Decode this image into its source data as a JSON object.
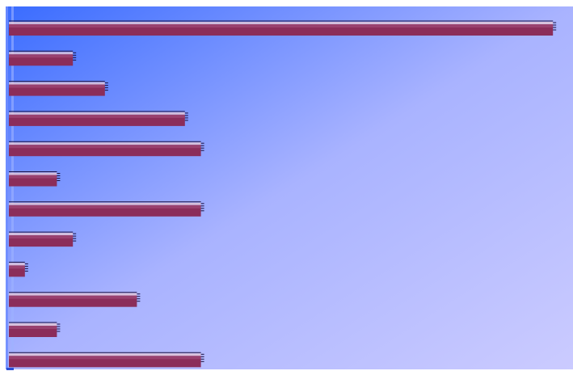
{
  "chart_data": {
    "type": "bar",
    "orientation": "horizontal",
    "categories": [
      "",
      "",
      "",
      "",
      "",
      "",
      "",
      "",
      "",
      "",
      "",
      ""
    ],
    "values": [
      34,
      4,
      6,
      11,
      12,
      3,
      12,
      4,
      1,
      8,
      3,
      12
    ],
    "xlim": [
      0,
      35
    ],
    "title": "",
    "xlabel": "",
    "ylabel": "",
    "grid": false,
    "legend": "none"
  },
  "colors": {
    "bar_fill": "#8b2d5a",
    "bar_shade_top": "#a04a78",
    "bar_edge_light": "#e0c4d6",
    "bar_outline": "#1a1040",
    "background_start": "#3a6cff",
    "background_mid": "#a9b3ff",
    "background_end": "#cbcbff",
    "axis_marker": "#2a4fd8"
  }
}
